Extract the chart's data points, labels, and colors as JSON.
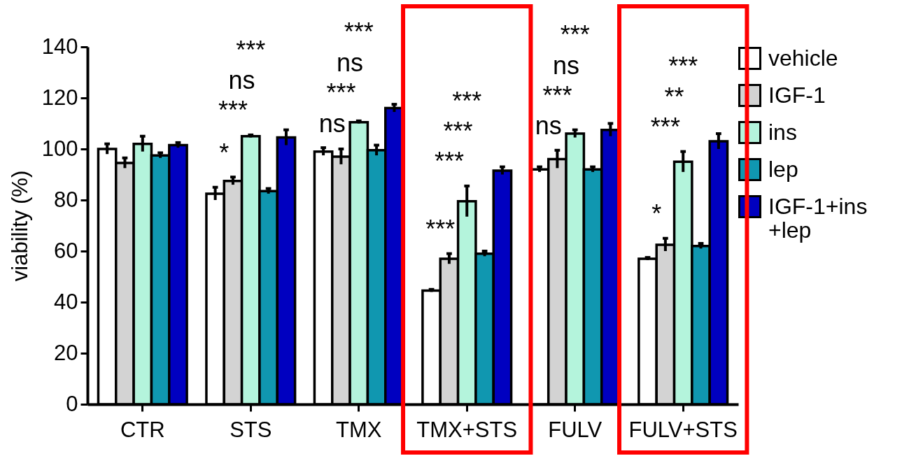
{
  "chart_data": {
    "type": "bar",
    "ylabel": "viability (%)",
    "categories": [
      "CTR",
      "STS",
      "TMX",
      "TMX+STS",
      "FULV",
      "FULV+STS"
    ],
    "series": [
      {
        "name": "vehicle",
        "color": "#ffffff",
        "values": [
          100,
          82.5,
          99,
          44.5,
          92,
          57
        ],
        "errors": [
          2,
          2.5,
          1.5,
          0.5,
          1,
          0.5
        ]
      },
      {
        "name": "IGF-1",
        "color": "#d3d3d3",
        "values": [
          94.5,
          87.5,
          97,
          57,
          96,
          62.5
        ],
        "errors": [
          2,
          1.5,
          3,
          2,
          3.5,
          2.5
        ]
      },
      {
        "name": "ins",
        "color": "#b4f4dc",
        "values": [
          102,
          105,
          110.5,
          79.5,
          106,
          95
        ],
        "errors": [
          3,
          0.5,
          0.5,
          6,
          1.5,
          4
        ]
      },
      {
        "name": "lep",
        "color": "#1097b0",
        "values": [
          97.5,
          83.5,
          99.5,
          59,
          92,
          62
        ],
        "errors": [
          1,
          1,
          2,
          1,
          1,
          1
        ]
      },
      {
        "name": "IGF-1+ins +lep",
        "color": "#0000c0",
        "values": [
          101.5,
          104.5,
          116,
          91.5,
          107.5,
          103
        ],
        "errors": [
          1,
          3,
          1.5,
          1.5,
          2.5,
          3
        ]
      }
    ],
    "ylim": [
      0,
      140
    ],
    "yticks": [
      0,
      20,
      40,
      60,
      80,
      100,
      120,
      140
    ],
    "grid": false,
    "legend": "right",
    "annotations": [
      "*",
      "***",
      "ns",
      "***",
      "ns",
      "***",
      "ns",
      "***",
      "***",
      "***",
      "***",
      "***",
      "ns",
      "***",
      "ns",
      "***",
      "*",
      "***",
      "**",
      "***"
    ]
  }
}
